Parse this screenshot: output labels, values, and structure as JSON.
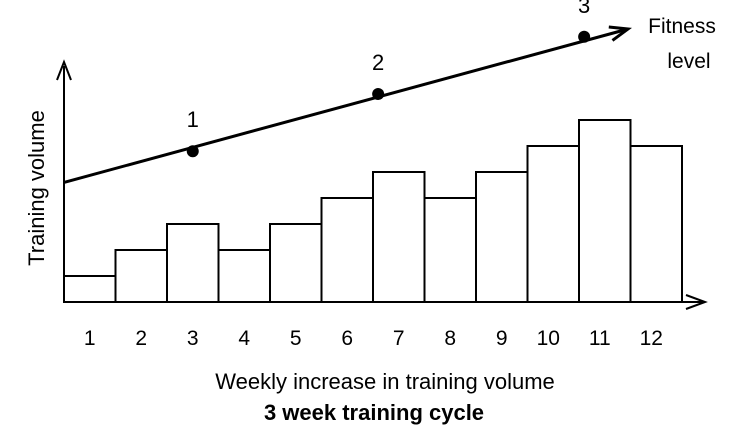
{
  "chart_data": {
    "type": "bar",
    "title": "3 week training cycle",
    "xlabel": "Weekly increase in training volume",
    "ylabel": "Training volume",
    "categories": [
      "1",
      "2",
      "3",
      "4",
      "5",
      "6",
      "7",
      "8",
      "9",
      "10",
      "11",
      "12"
    ],
    "values": [
      1,
      2,
      3,
      2,
      3,
      4,
      5,
      4,
      5,
      6,
      7,
      6
    ],
    "ylim": [
      0,
      10
    ],
    "grid": false,
    "trend": {
      "name_lines": [
        "Fitness",
        "level"
      ],
      "start_value": 4.6,
      "end_value": 10.5,
      "markers": [
        {
          "label": "1",
          "x": 3.0,
          "value": 5.8
        },
        {
          "label": "2",
          "x": 6.6,
          "value": 8.0
        },
        {
          "label": "3",
          "x": 10.6,
          "value": 10.2
        }
      ]
    }
  },
  "colors": {
    "ink": "#000000",
    "bar_fill": "#ffffff",
    "background": "#ffffff"
  }
}
